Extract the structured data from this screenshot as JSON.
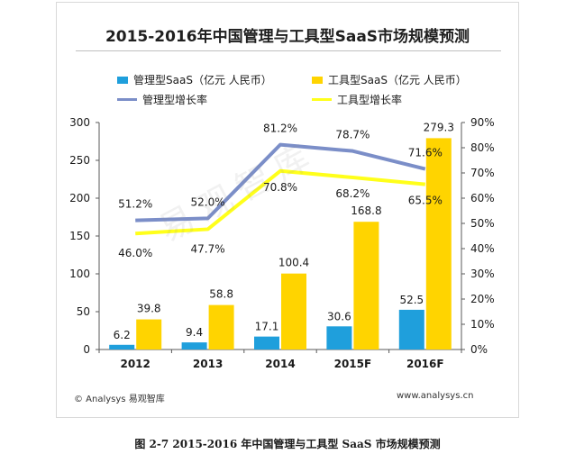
{
  "chart_data": {
    "type": "bar",
    "title": "2015-2016年中国管理与工具型SaaS市场规模预测",
    "categories": [
      "2012",
      "2013",
      "2014",
      "2015F",
      "2016F"
    ],
    "series": [
      {
        "name": "管理型SaaS（亿元 人民币）",
        "kind": "bar",
        "axis": "left",
        "color": "#1f9fdc",
        "values": [
          6.2,
          9.4,
          17.1,
          30.6,
          52.5
        ],
        "labels": [
          "6.2",
          "9.4",
          "17.1",
          "30.6",
          "52.5"
        ]
      },
      {
        "name": "工具型SaaS（亿元 人民币）",
        "kind": "bar",
        "axis": "left",
        "color": "#ffd400",
        "values": [
          39.8,
          58.8,
          100.4,
          168.8,
          279.3
        ],
        "labels": [
          "39.8",
          "58.8",
          "100.4",
          "168.8",
          "279.3"
        ]
      },
      {
        "name": "管理型增长率",
        "kind": "line",
        "axis": "right",
        "color": "#7b8ec8",
        "values": [
          51.2,
          52.0,
          81.2,
          78.7,
          71.6
        ],
        "labels": [
          "51.2%",
          "52.0%",
          "81.2%",
          "78.7%",
          "71.6%"
        ]
      },
      {
        "name": "工具型增长率",
        "kind": "line",
        "axis": "right",
        "color": "#ffff1a",
        "values": [
          46.0,
          47.7,
          70.8,
          68.2,
          65.5
        ],
        "labels": [
          "46.0%",
          "47.7%",
          "70.8%",
          "68.2%",
          "65.5%"
        ]
      }
    ],
    "ylim": [
      0,
      300
    ],
    "yticks": [
      "0",
      "50",
      "100",
      "150",
      "200",
      "250",
      "300"
    ],
    "y2lim": [
      0,
      90
    ],
    "y2ticks": [
      "0%",
      "10%",
      "20%",
      "30%",
      "40%",
      "50%",
      "60%",
      "70%",
      "80%",
      "90%"
    ],
    "grid": false,
    "legend": "top"
  },
  "watermark": "易观智库",
  "footer": {
    "source": "© Analysys 易观智库",
    "url": "www.analysys.cn"
  },
  "caption": "图 2-7 2015-2016 年中国管理与工具型 SaaS 市场规模预测"
}
